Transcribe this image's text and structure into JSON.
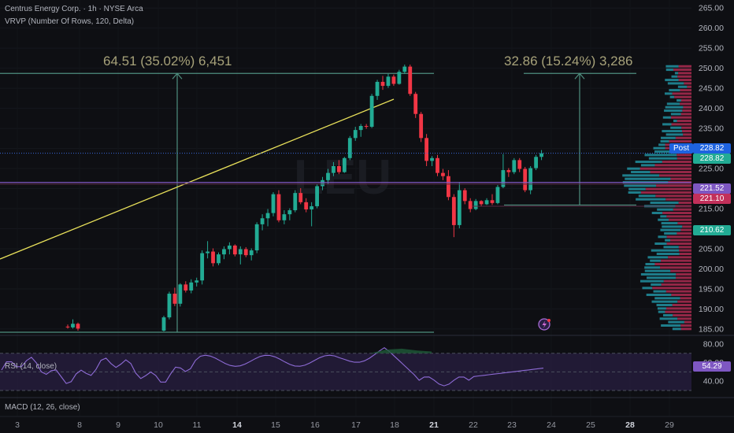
{
  "chart_title": "Centrus Energy Corp. · 1h · NYSE Arca",
  "volume_profile_label": "VRVP (Number Of Rows, 120, Delta)",
  "watermark": "LEU",
  "colors": {
    "up": "#22ab94",
    "down": "#f23645",
    "trend_line": "#e8e05a",
    "measure": "#4f8f7f",
    "profile_up": "#24a3b4",
    "profile_down": "#c2305a",
    "rsi_line": "#8e6bd6",
    "rsi_fill": "#2a1f44",
    "rsi_ob_fill": "#1f5a3a"
  },
  "badges": {
    "post_label": "Post",
    "post_price": "228.82",
    "last_price": "228.82",
    "level_1": "221.52",
    "level_2": "221.10",
    "level_3": "210.62"
  },
  "measurements": [
    {
      "text": "64.51 (35.02%) 6,451",
      "from_price": 184.2,
      "to_price": 248.7
    },
    {
      "text": "32.86 (15.24%) 3,286",
      "from_price": 215.9,
      "to_price": 248.7
    }
  ],
  "rsi": {
    "label": "RSI (14, close)",
    "value": "54.29",
    "ticks": [
      "80.00",
      "60.00",
      "40.00"
    ]
  },
  "macd": {
    "label": "MACD (12, 26, close)"
  },
  "icons": {
    "alert": "lightning-alert-icon"
  },
  "chart_data": {
    "type": "candlestick",
    "y_ticks": [
      265,
      260,
      255,
      250,
      245,
      240,
      235,
      230,
      225,
      220,
      215,
      210,
      205,
      200,
      195,
      190,
      185
    ],
    "ylim": [
      184,
      267
    ],
    "x_ticks": [
      "3",
      "8",
      "9",
      "10",
      "11",
      "14",
      "15",
      "16",
      "17",
      "18",
      "21",
      "22",
      "23",
      "24",
      "25",
      "28",
      "29"
    ],
    "x_ticks_bold": [
      "14",
      "21",
      "28"
    ],
    "ohlc_segments": [
      {
        "candles": [
          [
            185.6,
            186.1,
            185.1,
            185.4
          ],
          [
            185.4,
            187.4,
            185.1,
            186.3
          ],
          [
            186.3,
            186.6,
            184.6,
            185.1
          ]
        ]
      },
      {
        "candles": [
          [
            184.6,
            188.3,
            184.4,
            187.9
          ],
          [
            187.9,
            194.3,
            187.4,
            193.8
          ],
          [
            193.8,
            195.3,
            190.7,
            191.3
          ],
          [
            191.3,
            196.4,
            190.6,
            196.1
          ],
          [
            196.1,
            196.9,
            194.1,
            194.6
          ],
          [
            194.6,
            197.4,
            193.9,
            196.6
          ],
          [
            196.6,
            197.8,
            195.6,
            197.1
          ],
          [
            197.1,
            204.6,
            196.1,
            203.9
          ],
          [
            203.9,
            206.9,
            202.6,
            204.3
          ],
          [
            204.3,
            205.1,
            200.6,
            201.4
          ],
          [
            201.4,
            204.1,
            200.9,
            203.6
          ],
          [
            203.6,
            205.6,
            202.4,
            204.9
          ],
          [
            204.9,
            206.6,
            203.6,
            205.8
          ],
          [
            205.8,
            206.1,
            203.1,
            203.6
          ],
          [
            203.6,
            205.6,
            201.1,
            204.9
          ],
          [
            204.9,
            205.4,
            202.9,
            203.4
          ],
          [
            203.4,
            205.1,
            202.1,
            204.6
          ],
          [
            204.6,
            211.6,
            203.9,
            211.1
          ],
          [
            211.1,
            213.6,
            209.6,
            212.6
          ],
          [
            212.6,
            214.9,
            210.6,
            213.9
          ],
          [
            213.9,
            219.1,
            213.1,
            218.6
          ],
          [
            218.6,
            219.6,
            211.6,
            212.1
          ],
          [
            212.1,
            214.6,
            211.1,
            213.6
          ],
          [
            213.6,
            215.1,
            212.1,
            214.6
          ],
          [
            214.6,
            219.6,
            214.1,
            218.9
          ],
          [
            218.9,
            220.1,
            216.1,
            216.6
          ],
          [
            216.6,
            217.6,
            214.1,
            214.8
          ],
          [
            214.8,
            216.6,
            210.6,
            215.6
          ],
          [
            215.6,
            221.1,
            215.1,
            220.6
          ],
          [
            220.6,
            222.9,
            219.6,
            222.1
          ],
          [
            222.1,
            224.9,
            221.1,
            223.9
          ],
          [
            223.9,
            226.6,
            223.1,
            225.6
          ],
          [
            225.6,
            227.1,
            223.6,
            224.1
          ],
          [
            224.1,
            227.9,
            223.9,
            227.6
          ],
          [
            227.6,
            233.1,
            227.1,
            232.6
          ],
          [
            232.6,
            235.4,
            231.9,
            234.6
          ],
          [
            234.6,
            236.1,
            232.9,
            235.6
          ],
          [
            235.6,
            236.1,
            234.9,
            235.4
          ],
          [
            235.4,
            243.6,
            235.1,
            243.1
          ],
          [
            243.1,
            247.1,
            242.1,
            246.6
          ],
          [
            246.6,
            248.1,
            244.6,
            245.6
          ],
          [
            245.6,
            248.6,
            245.1,
            247.9
          ],
          [
            247.9,
            248.4,
            245.6,
            246.1
          ],
          [
            246.1,
            249.6,
            245.9,
            249.1
          ],
          [
            249.1,
            250.9,
            248.6,
            250.4
          ],
          [
            250.4,
            250.9,
            243.1,
            243.6
          ],
          [
            243.6,
            244.1,
            237.6,
            238.6
          ],
          [
            238.6,
            239.1,
            231.6,
            232.6
          ],
          [
            232.6,
            233.6,
            225.6,
            226.9
          ],
          [
            226.9,
            228.1,
            225.6,
            227.6
          ],
          [
            227.6,
            228.4,
            223.1,
            223.9
          ],
          [
            223.9,
            224.9,
            222.1,
            223.1
          ],
          [
            223.1,
            224.6,
            217.1,
            217.9
          ],
          [
            217.9,
            218.6,
            207.9,
            210.9
          ],
          [
            210.9,
            221.6,
            210.1,
            219.6
          ],
          [
            219.6,
            220.1,
            216.1,
            216.9
          ],
          [
            216.9,
            217.6,
            214.1,
            214.9
          ],
          [
            214.9,
            217.4,
            214.6,
            216.9
          ],
          [
            216.9,
            217.1,
            215.6,
            216.1
          ],
          [
            216.1,
            217.6,
            215.9,
            217.1
          ],
          [
            217.1,
            218.6,
            215.9,
            216.4
          ],
          [
            216.4,
            220.9,
            216.1,
            220.4
          ],
          [
            220.4,
            228.6,
            220.1,
            224.6
          ],
          [
            224.6,
            225.1,
            222.9,
            224.1
          ],
          [
            224.1,
            227.6,
            223.6,
            227.1
          ],
          [
            227.1,
            227.6,
            224.1,
            224.9
          ],
          [
            224.9,
            225.4,
            219.1,
            219.6
          ],
          [
            219.6,
            225.6,
            218.6,
            225.1
          ],
          [
            225.1,
            228.4,
            224.6,
            227.9
          ],
          [
            227.9,
            229.6,
            227.1,
            228.8
          ]
        ]
      }
    ]
  }
}
